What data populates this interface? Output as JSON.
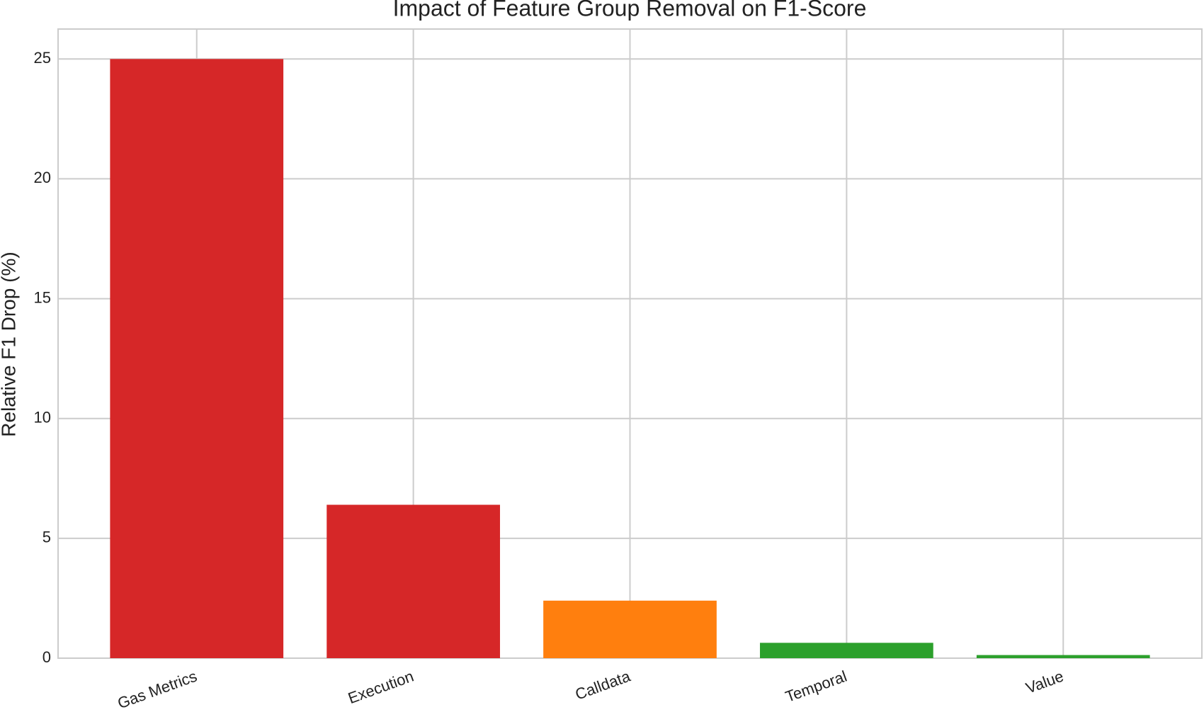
{
  "chart_data": {
    "type": "bar",
    "title": "Impact of Feature Group Removal on F1-Score",
    "y_label": "Relative F1 Drop (%)",
    "categories": [
      "Gas Metrics",
      "Execution",
      "Calldata",
      "Temporal",
      "Value"
    ],
    "values": [
      25.0,
      6.4,
      2.4,
      0.64,
      0.13
    ],
    "colors": [
      "#d62728",
      "#d62728",
      "#ff7f0e",
      "#2ca02c",
      "#2ca02c"
    ],
    "ylim": [
      0,
      26.25
    ],
    "yticks": [
      0,
      5,
      10,
      15,
      20,
      25
    ],
    "grid": true
  }
}
